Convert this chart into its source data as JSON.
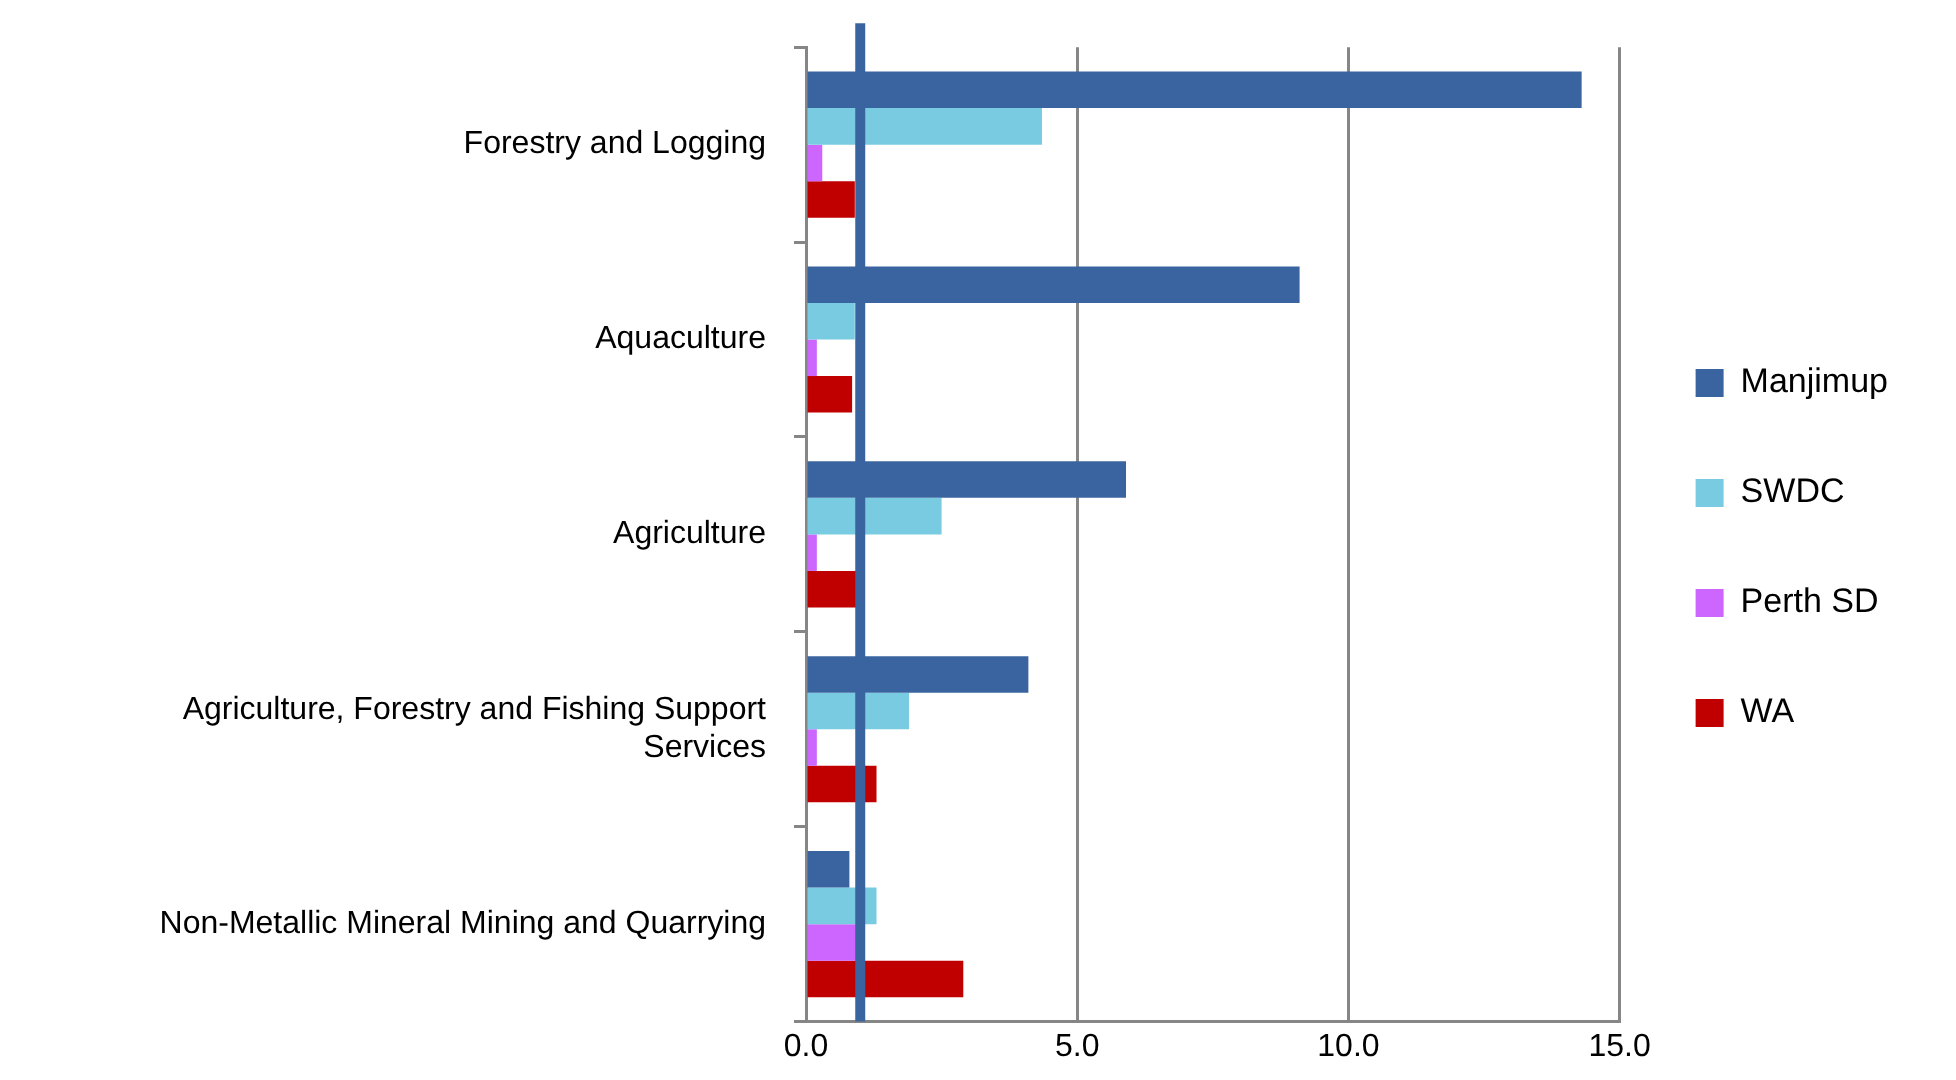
{
  "chart_data": {
    "type": "bar",
    "orientation": "horizontal",
    "categories": [
      "Forestry and Logging",
      "Aquaculture",
      "Agriculture",
      "Agriculture, Forestry and Fishing Support Services",
      "Non-Metallic Mineral Mining and Quarrying"
    ],
    "series": [
      {
        "name": "Manjimup",
        "color": "#3a64a0",
        "values": [
          14.3,
          9.1,
          5.9,
          4.1,
          0.8
        ]
      },
      {
        "name": "SWDC",
        "color": "#78cbe0",
        "values": [
          4.35,
          0.9,
          2.5,
          1.9,
          1.3
        ]
      },
      {
        "name": "Perth SD",
        "color": "#cc66ff",
        "values": [
          0.3,
          0.2,
          0.2,
          0.2,
          0.95
        ]
      },
      {
        "name": "WA",
        "color": "#c00000",
        "values": [
          0.9,
          0.85,
          0.95,
          1.3,
          2.9
        ]
      }
    ],
    "xlim": [
      0,
      15
    ],
    "xticks": [
      {
        "value": 0,
        "label": "0.0"
      },
      {
        "value": 5,
        "label": "5.0"
      },
      {
        "value": 10,
        "label": "10.0"
      },
      {
        "value": 15,
        "label": "15.0"
      }
    ],
    "ref_lines": [
      {
        "axis": "x",
        "value": 1,
        "color": "#3a64a0"
      }
    ],
    "grid": "x",
    "legend": "right"
  }
}
